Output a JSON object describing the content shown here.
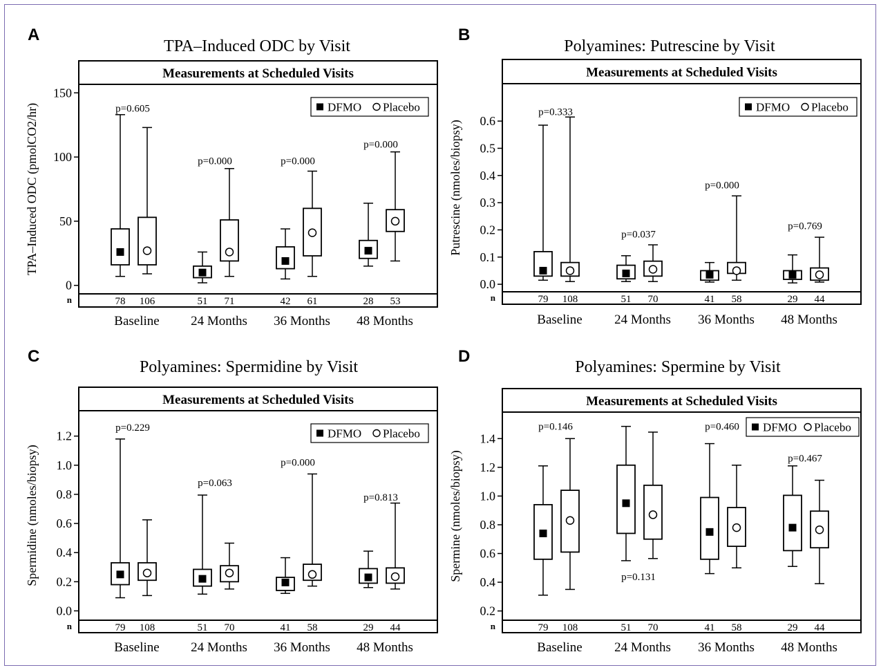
{
  "figure": {
    "frame_color": "#7b6bb0",
    "n_row_label": "n",
    "legend": {
      "dfmo": "DFMO",
      "placebo": "Placebo"
    }
  },
  "chart_data": [
    {
      "panel": "A",
      "type": "boxplot",
      "title": "TPA–Induced ODC by Visit",
      "subtitle": "Measurements at Scheduled Visits",
      "ylabel": "TPA–Induced ODC (pmolCO2/hr)",
      "ylim": [
        -5,
        155
      ],
      "yticks": [
        0,
        50,
        100,
        150
      ],
      "ytick_labels": [
        "0",
        "50",
        "100",
        "150"
      ],
      "categories": [
        "Baseline",
        "24 Months",
        "36 Months",
        "48 Months"
      ],
      "legend_position": "top-right",
      "series": [
        {
          "name": "DFMO",
          "marker": "filled-square",
          "boxes": [
            {
              "min": 7,
              "q1": 16,
              "median": 26,
              "q3": 44,
              "max": 133
            },
            {
              "min": 2,
              "q1": 6,
              "median": 10,
              "q3": 15,
              "max": 26
            },
            {
              "min": 5,
              "q1": 13,
              "median": 19,
              "q3": 30,
              "max": 44
            },
            {
              "min": 15,
              "q1": 21,
              "median": 27,
              "q3": 35,
              "max": 64
            }
          ],
          "n": [
            "78",
            "51",
            "42",
            "28"
          ]
        },
        {
          "name": "Placebo",
          "marker": "open-circle",
          "boxes": [
            {
              "min": 9,
              "q1": 16,
              "median": 27,
              "q3": 53,
              "max": 123
            },
            {
              "min": 7,
              "q1": 19,
              "median": 26,
              "q3": 51,
              "max": 91
            },
            {
              "min": 7,
              "q1": 23,
              "median": 41,
              "q3": 60,
              "max": 89
            },
            {
              "min": 19,
              "q1": 42,
              "median": 50,
              "q3": 59,
              "max": 104
            }
          ],
          "n": [
            "106",
            "71",
            "61",
            "53"
          ]
        }
      ],
      "pvalues": [
        {
          "text": "p=0.605",
          "category": 0,
          "y": 138
        },
        {
          "text": "p=0.000",
          "category": 1,
          "y": 97
        },
        {
          "text": "p=0.000",
          "category": 2,
          "y": 97
        },
        {
          "text": "p=0.000",
          "category": 3,
          "y": 110
        }
      ]
    },
    {
      "panel": "B",
      "type": "boxplot",
      "title": "Polyamines: Putrescine by Visit",
      "subtitle": "Measurements at Scheduled Visits",
      "ylabel": "Putrescine (nmoles/biopsy)",
      "ylim": [
        -0.02,
        0.73
      ],
      "yticks": [
        0,
        0.1,
        0.2,
        0.3,
        0.4,
        0.5,
        0.6
      ],
      "ytick_labels": [
        "0.0",
        "0.1",
        "0.2",
        "0.3",
        "0.4",
        "0.5",
        "0.6"
      ],
      "categories": [
        "Baseline",
        "24 Months",
        "36 Months",
        "48 Months"
      ],
      "legend_position": "top-right",
      "series": [
        {
          "name": "DFMO",
          "marker": "filled-square",
          "boxes": [
            {
              "min": 0.015,
              "q1": 0.03,
              "median": 0.05,
              "q3": 0.12,
              "max": 0.585
            },
            {
              "min": 0.01,
              "q1": 0.02,
              "median": 0.04,
              "q3": 0.07,
              "max": 0.105
            },
            {
              "min": 0.008,
              "q1": 0.015,
              "median": 0.035,
              "q3": 0.05,
              "max": 0.08
            },
            {
              "min": 0.005,
              "q1": 0.018,
              "median": 0.035,
              "q3": 0.05,
              "max": 0.108
            }
          ],
          "n": [
            "79",
            "51",
            "41",
            "29"
          ]
        },
        {
          "name": "Placebo",
          "marker": "open-circle",
          "boxes": [
            {
              "min": 0.01,
              "q1": 0.03,
              "median": 0.05,
              "q3": 0.08,
              "max": 0.615
            },
            {
              "min": 0.01,
              "q1": 0.03,
              "median": 0.055,
              "q3": 0.085,
              "max": 0.145
            },
            {
              "min": 0.015,
              "q1": 0.04,
              "median": 0.05,
              "q3": 0.08,
              "max": 0.325
            },
            {
              "min": 0.008,
              "q1": 0.015,
              "median": 0.035,
              "q3": 0.06,
              "max": 0.173
            }
          ],
          "n": [
            "108",
            "70",
            "58",
            "44"
          ]
        }
      ],
      "pvalues": [
        {
          "text": "p=0.333",
          "category": 0,
          "y": 0.635
        },
        {
          "text": "p=0.037",
          "category": 1,
          "y": 0.185
        },
        {
          "text": "p=0.000",
          "category": 2,
          "y": 0.365
        },
        {
          "text": "p=0.769",
          "category": 3,
          "y": 0.215
        }
      ]
    },
    {
      "panel": "C",
      "type": "boxplot",
      "title": "Polyamines: Spermidine by Visit",
      "subtitle": "Measurements at Scheduled Visits",
      "ylabel": "Spermidine (nmoles/biopsy)",
      "ylim": [
        -0.05,
        1.36
      ],
      "yticks": [
        0,
        0.2,
        0.4,
        0.6,
        0.8,
        1.0,
        1.2
      ],
      "ytick_labels": [
        "0.0",
        "0.2",
        "0.4",
        "0.6",
        "0.8",
        "1.0",
        "1.2"
      ],
      "categories": [
        "Baseline",
        "24 Months",
        "36 Months",
        "48 Months"
      ],
      "legend_position": "top-right",
      "series": [
        {
          "name": "DFMO",
          "marker": "filled-square",
          "boxes": [
            {
              "min": 0.09,
              "q1": 0.18,
              "median": 0.25,
              "q3": 0.33,
              "max": 1.18
            },
            {
              "min": 0.115,
              "q1": 0.17,
              "median": 0.22,
              "q3": 0.285,
              "max": 0.795
            },
            {
              "min": 0.12,
              "q1": 0.14,
              "median": 0.195,
              "q3": 0.23,
              "max": 0.365
            },
            {
              "min": 0.16,
              "q1": 0.19,
              "median": 0.23,
              "q3": 0.29,
              "max": 0.41
            }
          ],
          "n": [
            "79",
            "51",
            "41",
            "29"
          ]
        },
        {
          "name": "Placebo",
          "marker": "open-circle",
          "boxes": [
            {
              "min": 0.105,
              "q1": 0.21,
              "median": 0.26,
              "q3": 0.33,
              "max": 0.625
            },
            {
              "min": 0.15,
              "q1": 0.2,
              "median": 0.26,
              "q3": 0.31,
              "max": 0.465
            },
            {
              "min": 0.17,
              "q1": 0.21,
              "median": 0.25,
              "q3": 0.32,
              "max": 0.94
            },
            {
              "min": 0.15,
              "q1": 0.19,
              "median": 0.235,
              "q3": 0.295,
              "max": 0.74
            }
          ],
          "n": [
            "108",
            "70",
            "58",
            "44"
          ]
        }
      ],
      "pvalues": [
        {
          "text": "p=0.229",
          "category": 0,
          "y": 1.26
        },
        {
          "text": "p=0.063",
          "category": 1,
          "y": 0.88
        },
        {
          "text": "p=0.000",
          "category": 2,
          "y": 1.02
        },
        {
          "text": "p=0.813",
          "category": 3,
          "y": 0.78
        }
      ]
    },
    {
      "panel": "D",
      "type": "boxplot",
      "title": "Polyamines: Spermine by Visit",
      "subtitle": "Measurements at Scheduled Visits",
      "ylabel": "Spermine (nmoles/biopsy)",
      "ylim": [
        0.15,
        1.57
      ],
      "yticks": [
        0.2,
        0.4,
        0.6,
        0.8,
        1.0,
        1.2,
        1.4
      ],
      "ytick_labels": [
        "0.2",
        "0.4",
        "0.6",
        "0.8",
        "1.0",
        "1.2",
        "1.4"
      ],
      "categories": [
        "Baseline",
        "24 Months",
        "36 Months",
        "48 Months"
      ],
      "legend_position": "top-right",
      "series": [
        {
          "name": "DFMO",
          "marker": "filled-square",
          "boxes": [
            {
              "min": 0.31,
              "q1": 0.56,
              "median": 0.74,
              "q3": 0.94,
              "max": 1.21
            },
            {
              "min": 0.55,
              "q1": 0.74,
              "median": 0.95,
              "q3": 1.215,
              "max": 1.485
            },
            {
              "min": 0.46,
              "q1": 0.56,
              "median": 0.75,
              "q3": 0.99,
              "max": 1.365
            },
            {
              "min": 0.51,
              "q1": 0.62,
              "median": 0.78,
              "q3": 1.005,
              "max": 1.21
            }
          ],
          "n": [
            "79",
            "51",
            "41",
            "29"
          ]
        },
        {
          "name": "Placebo",
          "marker": "open-circle",
          "boxes": [
            {
              "min": 0.35,
              "q1": 0.61,
              "median": 0.83,
              "q3": 1.04,
              "max": 1.4
            },
            {
              "min": 0.565,
              "q1": 0.7,
              "median": 0.87,
              "q3": 1.075,
              "max": 1.445
            },
            {
              "min": 0.5,
              "q1": 0.65,
              "median": 0.78,
              "q3": 0.92,
              "max": 1.215
            },
            {
              "min": 0.39,
              "q1": 0.64,
              "median": 0.765,
              "q3": 0.895,
              "max": 1.11
            }
          ],
          "n": [
            "108",
            "70",
            "58",
            "44"
          ]
        }
      ],
      "pvalues": [
        {
          "text": "p=0.146",
          "category": 0,
          "y": 1.485
        },
        {
          "text": "p=0.131",
          "category": 1,
          "y": 0.44
        },
        {
          "text": "p=0.460",
          "category": 2,
          "y": 1.485
        },
        {
          "text": "p=0.467",
          "category": 3,
          "y": 1.265
        }
      ]
    }
  ]
}
